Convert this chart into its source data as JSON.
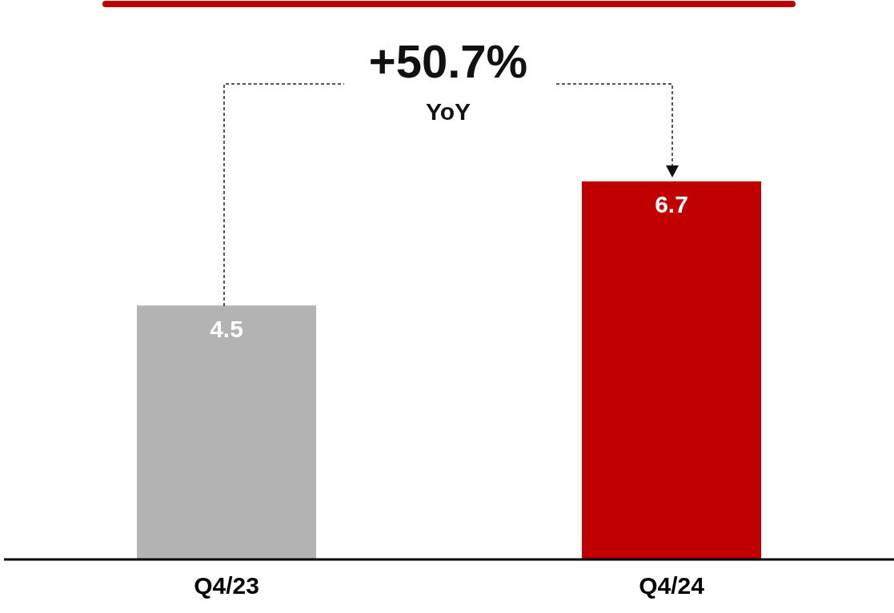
{
  "chart_data": {
    "type": "bar",
    "categories": [
      "Q4/23",
      "Q4/24"
    ],
    "values": [
      4.5,
      6.7
    ],
    "colors": [
      "#b3b3b3",
      "#c00000"
    ],
    "data_labels": true,
    "annotations": [
      "+50.7%",
      "YoY"
    ]
  }
}
